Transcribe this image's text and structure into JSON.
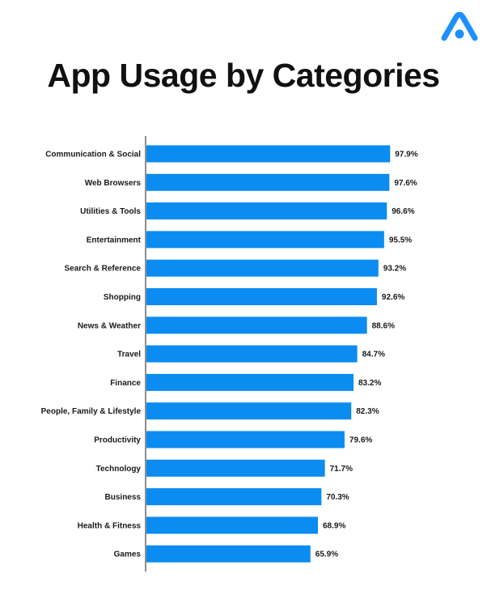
{
  "logo": {
    "icon": "brand-a-logo-icon",
    "color": "#1e8fff"
  },
  "chart_data": {
    "type": "bar",
    "orientation": "horizontal",
    "title": "App Usage by Categories",
    "xlabel": "",
    "ylabel": "",
    "xlim": [
      0,
      100
    ],
    "value_suffix": "%",
    "bar_color": "#0a8cf0",
    "grid": false,
    "categories": [
      "Communication & Social",
      "Web Browsers",
      "Utilities & Tools",
      "Entertainment",
      "Search & Reference",
      "Shopping",
      "News & Weather",
      "Travel",
      "Finance",
      "People, Family & Lifestyle",
      "Productivity",
      "Technology",
      "Business",
      "Health & Fitness",
      "Games"
    ],
    "values": [
      97.9,
      97.6,
      96.6,
      95.5,
      93.2,
      92.6,
      88.6,
      84.7,
      83.2,
      82.3,
      79.6,
      71.7,
      70.3,
      68.9,
      65.9
    ],
    "value_labels": [
      "97.9%",
      "97.6%",
      "96.6%",
      "95.5%",
      "93.2%",
      "92.6%",
      "88.6%",
      "84.7%",
      "83.2%",
      "82.3%",
      "79.6%",
      "71.7%",
      "70.3%",
      "68.9%",
      "65.9%"
    ]
  }
}
